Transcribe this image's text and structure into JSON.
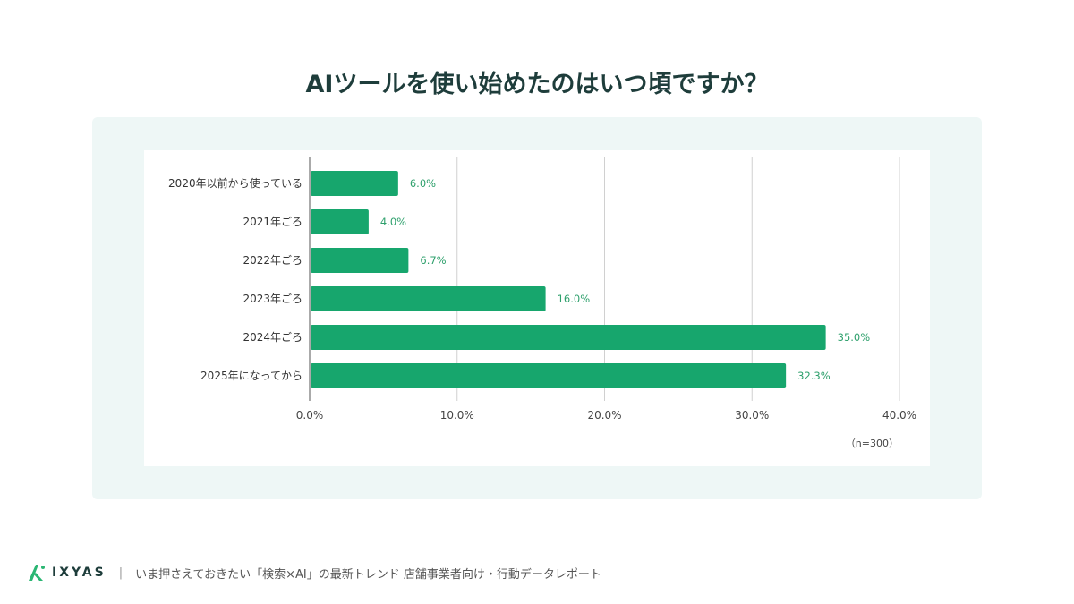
{
  "title": "AIツールを使い始めたのはいつ頃ですか？",
  "chart_data": {
    "type": "bar",
    "orientation": "horizontal",
    "title": "AIツールを使い始めたのはいつ頃ですか？",
    "categories": [
      "2020年以前から使っている",
      "2021年ごろ",
      "2022年ごろ",
      "2023年ごろ",
      "2024年ごろ",
      "2025年になってから"
    ],
    "values": [
      6.0,
      4.0,
      6.7,
      16.0,
      35.0,
      32.3
    ],
    "data_labels": [
      "6.0%",
      "4.0%",
      "6.7%",
      "16.0%",
      "35.0%",
      "32.3%"
    ],
    "xlim": [
      0,
      40
    ],
    "x_ticks": [
      "0.0%",
      "10.0%",
      "20.0%",
      "30.0%",
      "40.0%"
    ],
    "grid": true,
    "note": "（n=300）",
    "bar_color": "#17a66d",
    "label_color": "#2ea06c"
  },
  "footer": {
    "logo": "IXYAS",
    "separator": "|",
    "text": "いま押さえておきたい「検索×AI」の最新トレンド 店舗事業者向け・行動データレポート"
  }
}
